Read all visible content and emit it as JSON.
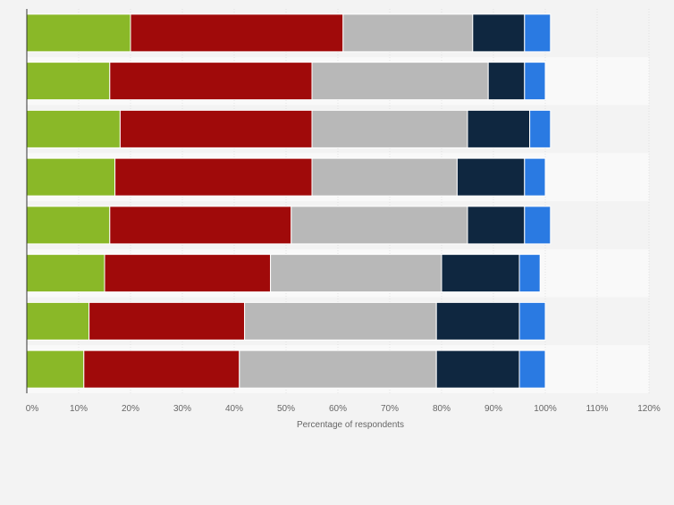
{
  "chart_data": {
    "type": "bar",
    "orientation": "horizontal",
    "stacked": true,
    "title": "",
    "xlabel": "Percentage of respondents",
    "ylabel": "",
    "xlim": [
      0,
      120
    ],
    "xticks": [
      0,
      10,
      20,
      30,
      40,
      50,
      60,
      70,
      80,
      90,
      100,
      110,
      120
    ],
    "xtick_labels": [
      "0%",
      "10%",
      "20%",
      "30%",
      "40%",
      "50%",
      "60%",
      "70%",
      "80%",
      "90%",
      "100%",
      "110%",
      "120%"
    ],
    "grid": true,
    "categories": [
      "",
      "",
      "",
      "",
      "",
      "",
      "",
      ""
    ],
    "series": [
      {
        "name": "",
        "color": "#8ab828",
        "values": [
          20,
          16,
          18,
          17,
          16,
          15,
          12,
          11
        ]
      },
      {
        "name": "",
        "color": "#a00a0a",
        "values": [
          41,
          39,
          37,
          38,
          35,
          32,
          30,
          30
        ]
      },
      {
        "name": "",
        "color": "#b8b8b8",
        "values": [
          25,
          34,
          30,
          28,
          34,
          33,
          37,
          38
        ]
      },
      {
        "name": "",
        "color": "#0f2740",
        "values": [
          10,
          7,
          12,
          13,
          11,
          15,
          16,
          16
        ]
      },
      {
        "name": "",
        "color": "#2a7ae2",
        "values": [
          5,
          4,
          4,
          4,
          5,
          4,
          5,
          5
        ]
      }
    ]
  }
}
